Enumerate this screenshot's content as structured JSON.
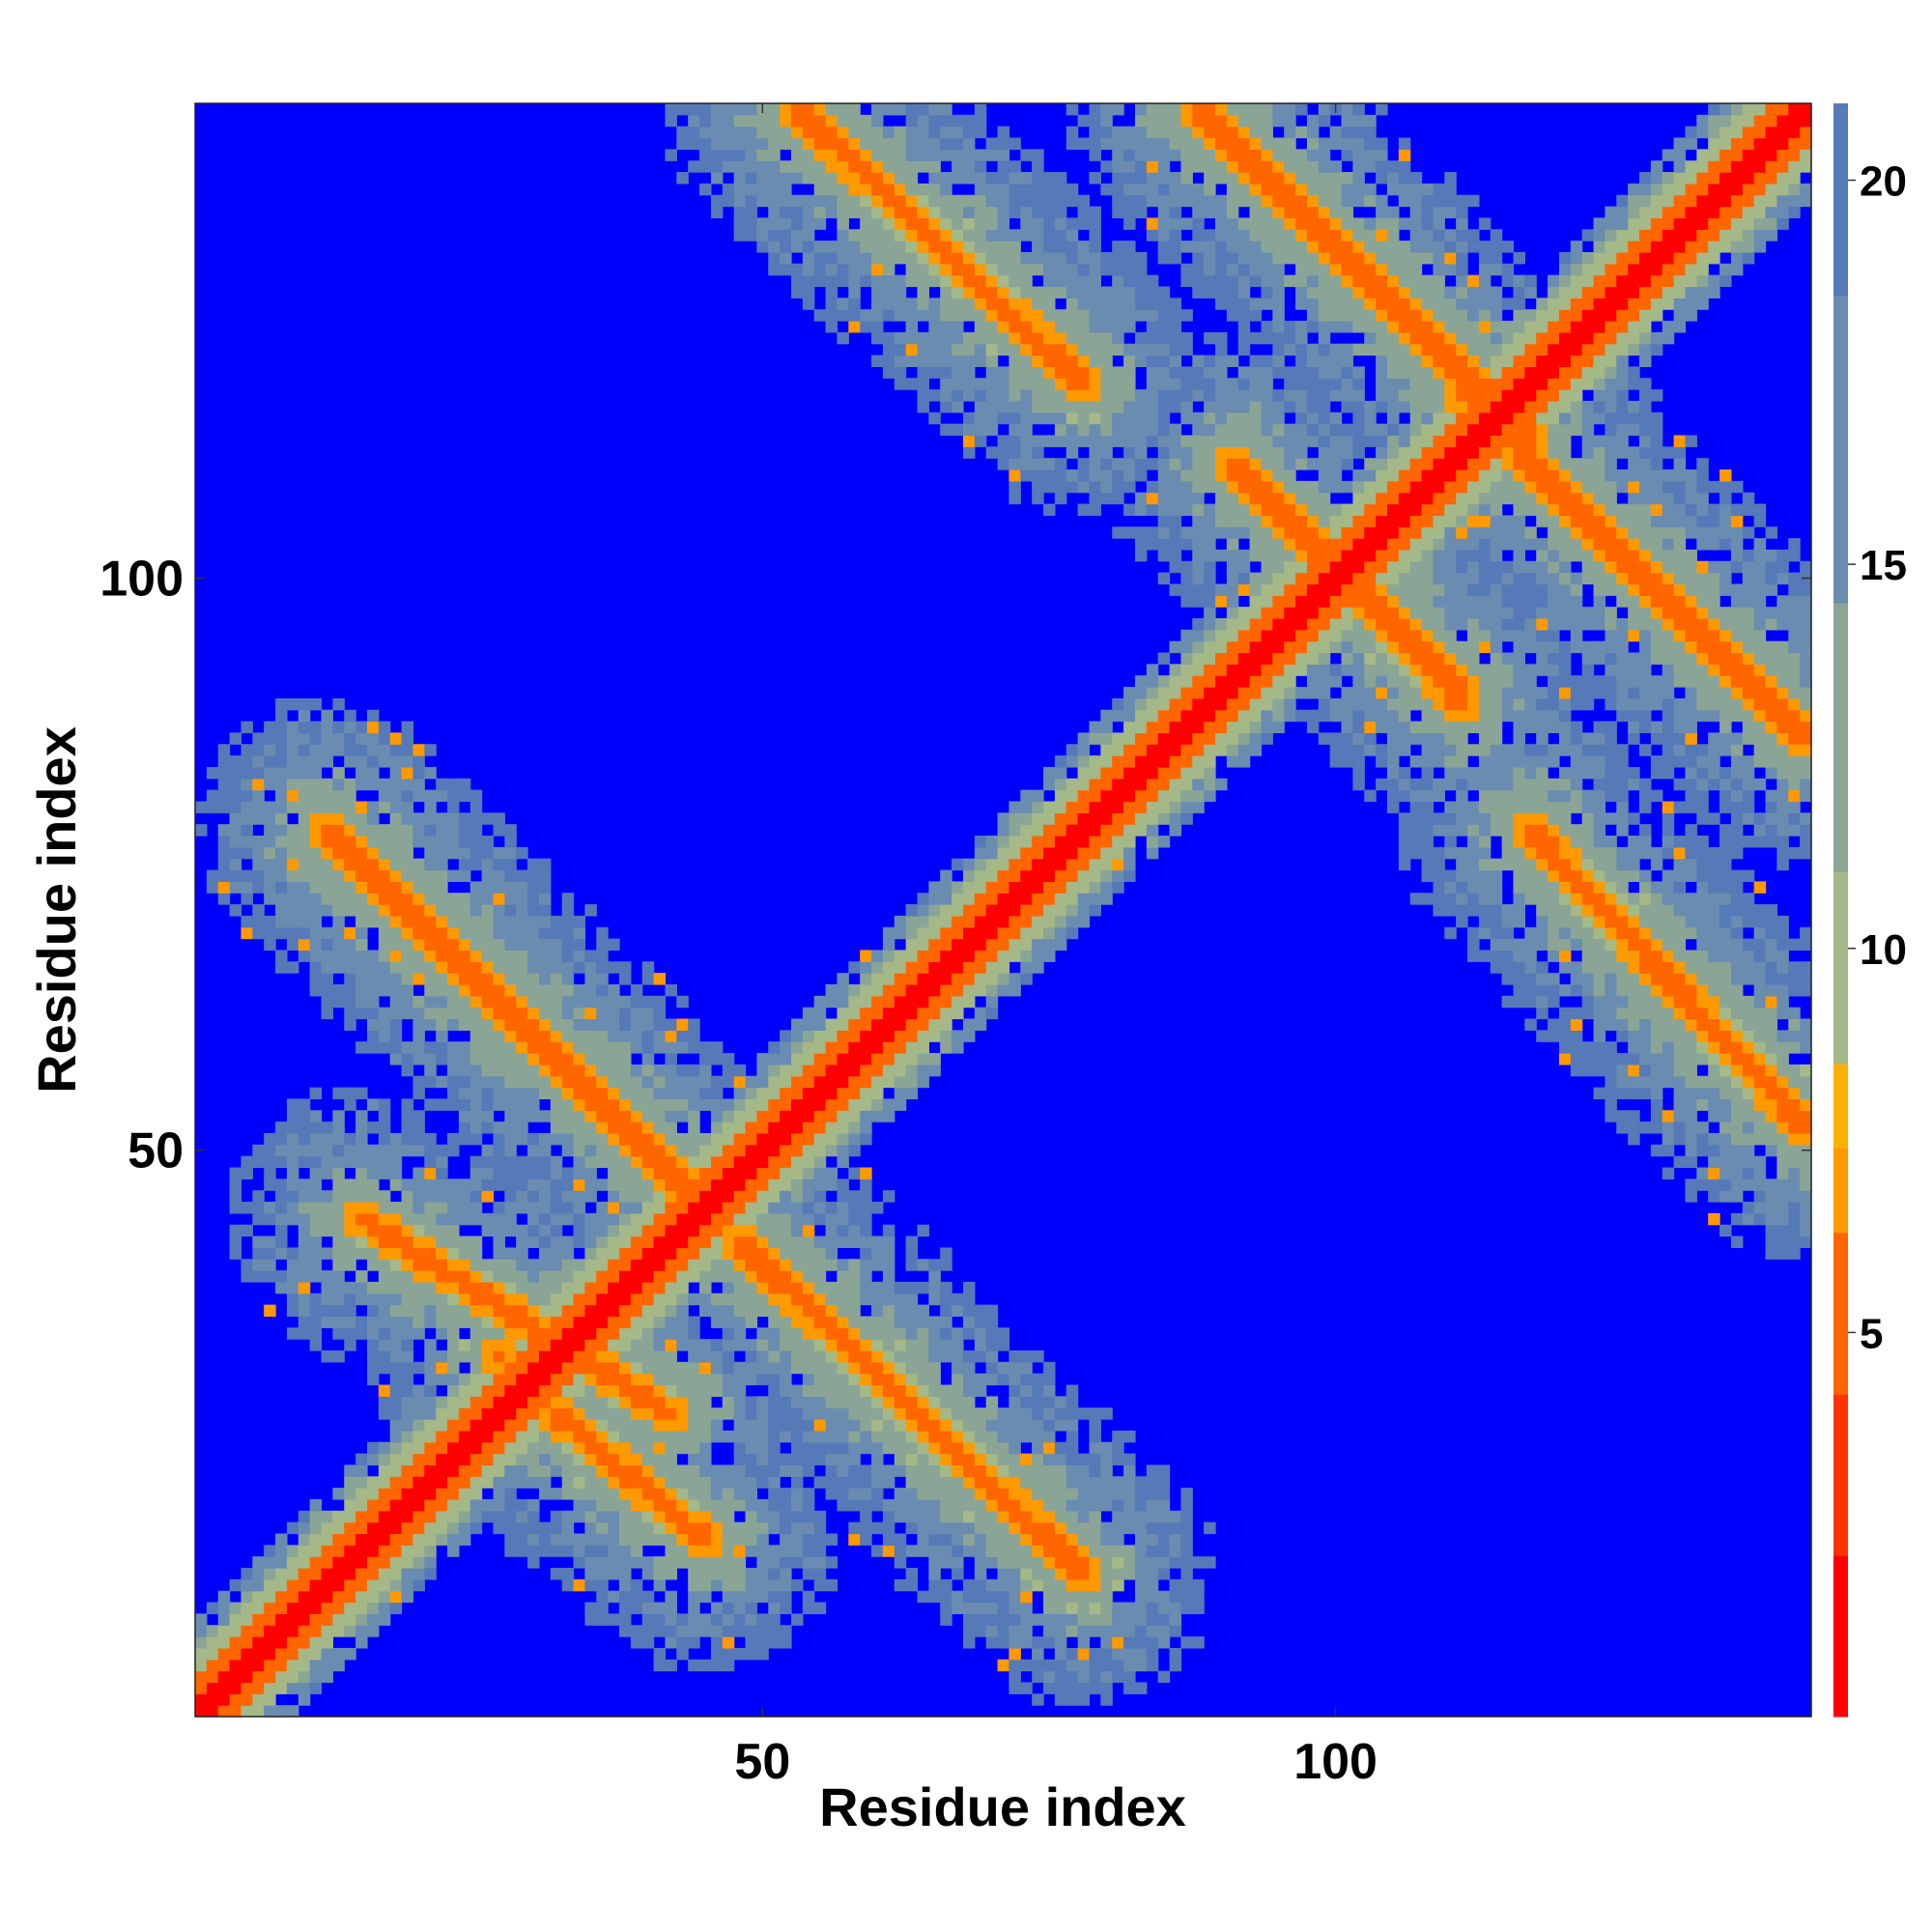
{
  "chart_data": {
    "type": "heatmap",
    "title": "",
    "xlabel": "Residue index",
    "ylabel": "Residue index",
    "n_residues": 141,
    "xlim": [
      1,
      141
    ],
    "ylim": [
      1,
      141
    ],
    "x_ticks": [
      50,
      100
    ],
    "y_ticks": [
      50,
      100
    ],
    "colorbar": {
      "min": 0,
      "max": 21,
      "ticks": [
        5,
        10,
        15,
        20
      ],
      "colors": [
        "#ff0000",
        "#ff3300",
        "#ff6600",
        "#ff9900",
        "#ffb000",
        "#a4b888",
        "#8aa596",
        "#6a8cb0",
        "#5679b8",
        "#0000ff"
      ],
      "stops": [
        0,
        2.1,
        4.2,
        6.3,
        7.4,
        8.5,
        11.0,
        14.5,
        18.5,
        21
      ]
    },
    "features": {
      "diagonal": "distance ~0 along i=j",
      "antiparallel_contact_bands": [
        {
          "i": [
            53,
            78
          ],
          "j": [
            141,
            117
          ]
        },
        {
          "i": [
            88,
            117
          ],
          "j": [
            141,
            112
          ]
        },
        {
          "i": [
            116,
            141
          ],
          "j": [
            111,
            86
          ]
        },
        {
          "i": [
            117,
            141
          ],
          "j": [
            78,
            52
          ]
        },
        {
          "i": [
            91,
            111
          ],
          "j": [
            110,
            90
          ]
        },
        {
          "i": [
            101,
            111
          ],
          "j": [
            100,
            89
          ]
        },
        {
          "i": [
            12,
            44
          ],
          "j": [
            78,
            46
          ]
        },
        {
          "i": [
            15,
            42
          ],
          "j": [
            44,
            27
          ]
        },
        {
          "i": [
            48,
            78
          ],
          "j": [
            42,
            13
          ]
        },
        {
          "i": [
            32,
            45
          ],
          "j": [
            27,
            16
          ]
        }
      ]
    }
  }
}
